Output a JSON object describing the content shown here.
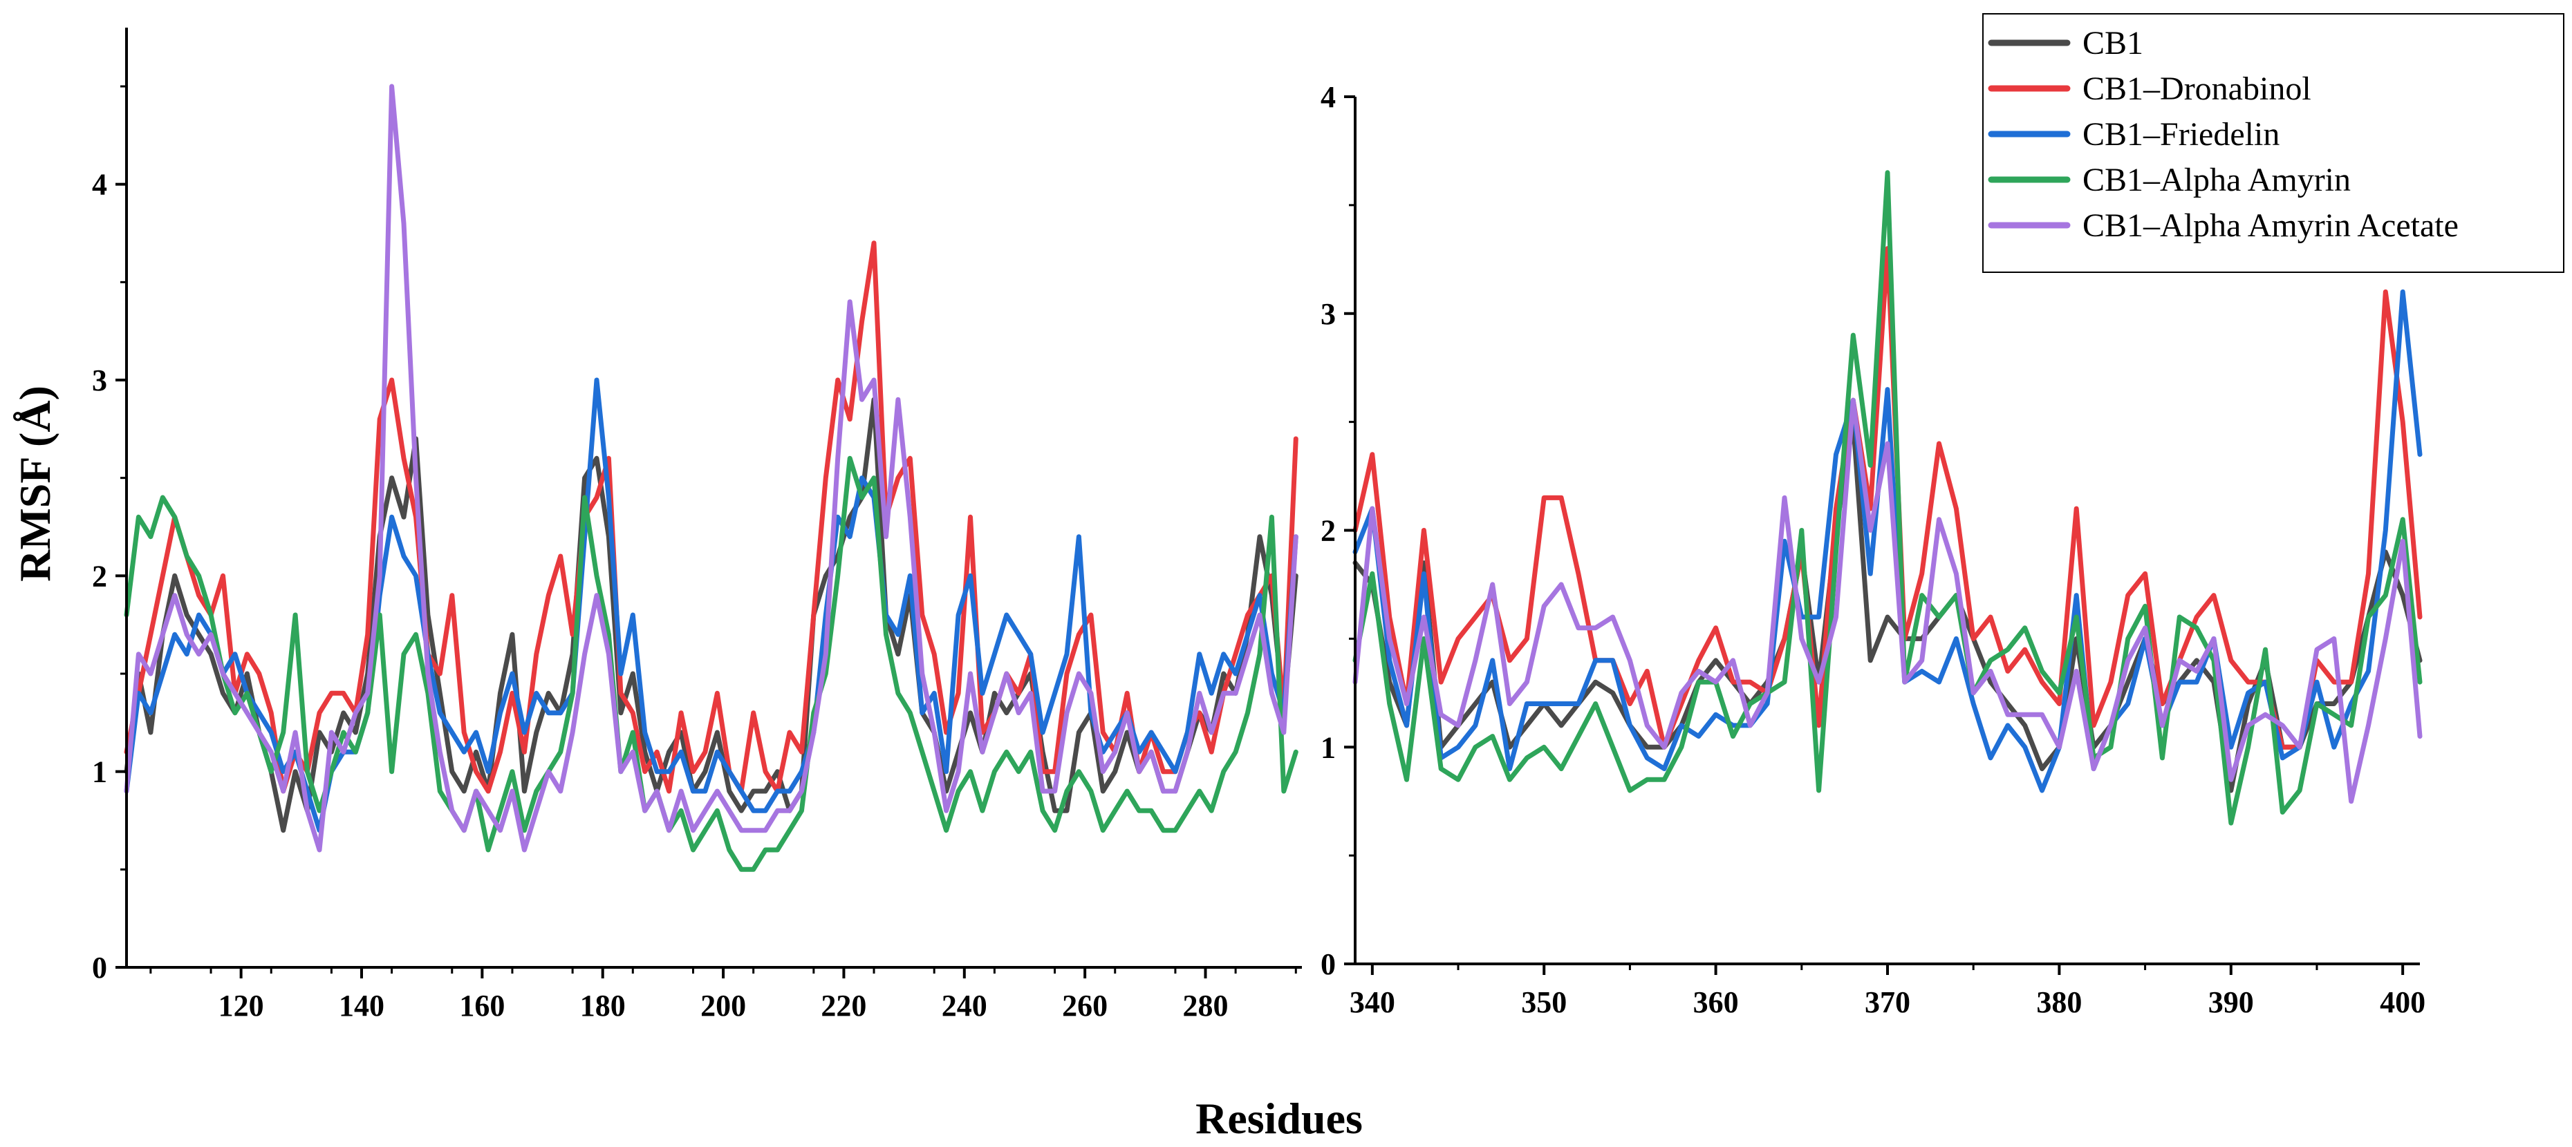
{
  "colors": {
    "CB1": "#4a4a4a",
    "CB1-Dronabinol": "#e8393d",
    "CB1-Friedelin": "#1f6fd6",
    "CB1-Alpha Amyrin": "#2ea55a",
    "CB1-Alpha Amyrin Acetate": "#a675e0"
  },
  "chart_data": [
    {
      "type": "line",
      "panel": "left",
      "ylabel": "RMSF (Å)",
      "xlabel": "Residues",
      "xlim": [
        101,
        296
      ],
      "ylim": [
        0,
        4.8
      ],
      "x_ticks": [
        "120",
        "140",
        "160",
        "180",
        "200",
        "220",
        "240",
        "260",
        "280"
      ],
      "y_ticks": [
        "0",
        "1",
        "2",
        "3",
        "4"
      ],
      "grid": false,
      "x": [
        101,
        103,
        105,
        107,
        109,
        111,
        113,
        115,
        117,
        119,
        121,
        123,
        125,
        127,
        129,
        131,
        133,
        135,
        137,
        139,
        141,
        143,
        145,
        147,
        149,
        151,
        153,
        155,
        157,
        159,
        161,
        163,
        165,
        167,
        169,
        171,
        173,
        175,
        177,
        179,
        181,
        183,
        185,
        187,
        189,
        191,
        193,
        195,
        197,
        199,
        201,
        203,
        205,
        207,
        209,
        211,
        213,
        215,
        217,
        219,
        221,
        223,
        225,
        227,
        229,
        231,
        233,
        235,
        237,
        239,
        241,
        243,
        245,
        247,
        249,
        251,
        253,
        255,
        257,
        259,
        261,
        263,
        265,
        267,
        269,
        271,
        273,
        275,
        277,
        279,
        281,
        283,
        285,
        287,
        289,
        291,
        293,
        295
      ],
      "series": [
        {
          "name": "CB1",
          "values": [
            1.0,
            1.5,
            1.2,
            1.7,
            2.0,
            1.8,
            1.7,
            1.6,
            1.4,
            1.3,
            1.5,
            1.2,
            1.0,
            0.7,
            1.0,
            0.8,
            1.2,
            1.1,
            1.3,
            1.2,
            1.5,
            2.2,
            2.5,
            2.3,
            2.7,
            1.8,
            1.4,
            1.0,
            0.9,
            1.1,
            0.9,
            1.4,
            1.7,
            0.9,
            1.2,
            1.4,
            1.3,
            1.6,
            2.5,
            2.6,
            2.2,
            1.3,
            1.5,
            1.1,
            0.9,
            1.1,
            1.2,
            0.9,
            1.0,
            1.2,
            0.9,
            0.8,
            0.9,
            0.9,
            1.0,
            0.8,
            0.9,
            1.8,
            2.0,
            2.1,
            2.3,
            2.4,
            2.9,
            1.8,
            1.6,
            1.9,
            1.3,
            1.2,
            0.9,
            1.1,
            1.3,
            1.1,
            1.4,
            1.3,
            1.4,
            1.5,
            1.1,
            0.8,
            0.8,
            1.2,
            1.3,
            0.9,
            1.0,
            1.2,
            1.0,
            1.1,
            0.9,
            0.9,
            1.1,
            1.3,
            1.2,
            1.5,
            1.4,
            1.7,
            2.2,
            1.9,
            1.3,
            2.0
          ]
        },
        {
          "name": "CB1-Dronabinol",
          "values": [
            1.1,
            1.4,
            1.7,
            2.0,
            2.3,
            2.1,
            1.9,
            1.8,
            2.0,
            1.4,
            1.6,
            1.5,
            1.3,
            0.9,
            1.1,
            1.0,
            1.3,
            1.4,
            1.4,
            1.3,
            1.7,
            2.8,
            3.0,
            2.6,
            2.3,
            1.6,
            1.5,
            1.9,
            1.2,
            1.0,
            0.9,
            1.1,
            1.4,
            1.1,
            1.6,
            1.9,
            2.1,
            1.7,
            2.3,
            2.4,
            2.6,
            1.4,
            1.3,
            1.0,
            1.1,
            0.9,
            1.3,
            1.0,
            1.1,
            1.4,
            1.0,
            0.9,
            1.3,
            1.0,
            0.9,
            1.2,
            1.1,
            1.8,
            2.5,
            3.0,
            2.8,
            3.3,
            3.7,
            2.3,
            2.5,
            2.6,
            1.8,
            1.6,
            1.2,
            1.4,
            2.3,
            1.2,
            1.3,
            1.5,
            1.4,
            1.6,
            1.0,
            1.0,
            1.5,
            1.7,
            1.8,
            1.2,
            1.1,
            1.4,
            1.0,
            1.2,
            1.0,
            1.0,
            1.2,
            1.3,
            1.1,
            1.4,
            1.6,
            1.8,
            1.9,
            2.0,
            1.3,
            2.7
          ]
        },
        {
          "name": "CB1-Friedelin",
          "values": [
            0.9,
            1.4,
            1.3,
            1.5,
            1.7,
            1.6,
            1.8,
            1.7,
            1.5,
            1.6,
            1.4,
            1.3,
            1.2,
            1.0,
            1.1,
            0.9,
            0.7,
            1.0,
            1.1,
            1.1,
            1.3,
            1.9,
            2.3,
            2.1,
            2.0,
            1.6,
            1.3,
            1.2,
            1.1,
            1.2,
            1.0,
            1.3,
            1.5,
            1.2,
            1.4,
            1.3,
            1.3,
            1.4,
            2.2,
            3.0,
            2.4,
            1.5,
            1.8,
            1.2,
            1.0,
            1.0,
            1.1,
            0.9,
            0.9,
            1.1,
            1.0,
            0.9,
            0.8,
            0.8,
            0.9,
            0.9,
            1.0,
            1.2,
            1.8,
            2.3,
            2.2,
            2.5,
            2.4,
            1.8,
            1.7,
            2.0,
            1.3,
            1.4,
            1.0,
            1.8,
            2.0,
            1.4,
            1.6,
            1.8,
            1.7,
            1.6,
            1.2,
            1.4,
            1.6,
            2.2,
            1.3,
            1.1,
            1.2,
            1.3,
            1.1,
            1.2,
            1.1,
            1.0,
            1.2,
            1.6,
            1.4,
            1.6,
            1.5,
            1.7,
            1.9,
            1.5,
            1.3,
            2.2
          ]
        },
        {
          "name": "CB1-Alpha Amyrin",
          "values": [
            1.8,
            2.3,
            2.2,
            2.4,
            2.3,
            2.1,
            2.0,
            1.8,
            1.5,
            1.3,
            1.4,
            1.2,
            1.0,
            1.2,
            1.8,
            1.0,
            0.8,
            1.0,
            1.2,
            1.1,
            1.3,
            1.8,
            1.0,
            1.6,
            1.7,
            1.4,
            0.9,
            0.8,
            0.7,
            0.9,
            0.6,
            0.8,
            1.0,
            0.7,
            0.9,
            1.0,
            1.1,
            1.4,
            2.4,
            2.0,
            1.7,
            1.0,
            1.2,
            0.8,
            0.9,
            0.7,
            0.8,
            0.6,
            0.7,
            0.8,
            0.6,
            0.5,
            0.5,
            0.6,
            0.6,
            0.7,
            0.8,
            1.3,
            1.5,
            2.0,
            2.6,
            2.4,
            2.5,
            1.7,
            1.4,
            1.3,
            1.1,
            0.9,
            0.7,
            0.9,
            1.0,
            0.8,
            1.0,
            1.1,
            1.0,
            1.1,
            0.8,
            0.7,
            0.9,
            1.0,
            0.9,
            0.7,
            0.8,
            0.9,
            0.8,
            0.8,
            0.7,
            0.7,
            0.8,
            0.9,
            0.8,
            1.0,
            1.1,
            1.3,
            1.6,
            2.3,
            0.9,
            1.1
          ]
        },
        {
          "name": "CB1-Alpha Amyrin Acetate",
          "values": [
            0.9,
            1.6,
            1.5,
            1.7,
            1.9,
            1.7,
            1.6,
            1.7,
            1.5,
            1.4,
            1.3,
            1.2,
            1.1,
            0.9,
            1.2,
            0.8,
            0.6,
            1.2,
            1.1,
            1.3,
            1.4,
            2.0,
            4.5,
            3.8,
            2.5,
            1.5,
            1.1,
            0.8,
            0.7,
            0.9,
            0.8,
            0.7,
            0.9,
            0.6,
            0.8,
            1.0,
            0.9,
            1.2,
            1.6,
            1.9,
            1.6,
            1.0,
            1.1,
            0.8,
            0.9,
            0.7,
            0.9,
            0.7,
            0.8,
            0.9,
            0.8,
            0.7,
            0.7,
            0.7,
            0.8,
            0.8,
            0.9,
            1.2,
            1.6,
            2.6,
            3.4,
            2.9,
            3.0,
            2.2,
            2.9,
            2.3,
            1.5,
            1.2,
            0.8,
            1.0,
            1.5,
            1.1,
            1.3,
            1.5,
            1.3,
            1.4,
            0.9,
            0.9,
            1.3,
            1.5,
            1.4,
            1.0,
            1.1,
            1.3,
            1.0,
            1.1,
            0.9,
            0.9,
            1.1,
            1.4,
            1.2,
            1.4,
            1.4,
            1.6,
            1.8,
            1.4,
            1.2,
            2.2
          ]
        }
      ]
    },
    {
      "type": "line",
      "panel": "right",
      "xlim": [
        339,
        401
      ],
      "ylim": [
        0,
        4
      ],
      "x_ticks": [
        "340",
        "350",
        "360",
        "370",
        "380",
        "390",
        "400"
      ],
      "y_ticks": [
        "0",
        "1",
        "2",
        "3",
        "4"
      ],
      "grid": false,
      "legend_position": "top-right",
      "x": [
        339,
        340,
        341,
        342,
        343,
        344,
        345,
        346,
        347,
        348,
        349,
        350,
        351,
        352,
        353,
        354,
        355,
        356,
        357,
        358,
        359,
        360,
        361,
        362,
        363,
        364,
        365,
        366,
        367,
        368,
        369,
        370,
        371,
        372,
        373,
        374,
        375,
        376,
        377,
        378,
        379,
        380,
        381,
        382,
        383,
        384,
        385,
        386,
        387,
        388,
        389,
        390,
        391,
        392,
        393,
        394,
        395,
        396,
        397,
        398,
        399,
        400,
        401
      ],
      "series": [
        {
          "name": "CB1",
          "values": [
            1.85,
            1.75,
            1.3,
            1.1,
            1.85,
            1.0,
            1.1,
            1.2,
            1.3,
            1.0,
            1.1,
            1.2,
            1.1,
            1.2,
            1.3,
            1.25,
            1.1,
            1.0,
            1.0,
            1.1,
            1.3,
            1.4,
            1.3,
            1.2,
            1.3,
            1.5,
            1.9,
            1.3,
            2.0,
            2.5,
            1.4,
            1.6,
            1.5,
            1.5,
            1.6,
            1.7,
            1.5,
            1.3,
            1.2,
            1.1,
            0.9,
            1.0,
            1.5,
            1.0,
            1.1,
            1.3,
            1.5,
            1.2,
            1.3,
            1.4,
            1.3,
            0.8,
            1.2,
            1.4,
            1.0,
            1.0,
            1.2,
            1.2,
            1.3,
            1.6,
            1.9,
            1.7,
            1.4
          ]
        },
        {
          "name": "CB1-Dronabinol",
          "values": [
            2.0,
            2.35,
            1.6,
            1.2,
            2.0,
            1.3,
            1.5,
            1.6,
            1.7,
            1.4,
            1.5,
            2.15,
            2.15,
            1.8,
            1.4,
            1.4,
            1.2,
            1.35,
            1.0,
            1.2,
            1.4,
            1.55,
            1.3,
            1.3,
            1.25,
            1.5,
            1.9,
            1.1,
            2.1,
            2.6,
            2.1,
            3.3,
            1.5,
            1.8,
            2.4,
            2.1,
            1.5,
            1.6,
            1.35,
            1.45,
            1.3,
            1.2,
            2.1,
            1.1,
            1.3,
            1.7,
            1.8,
            1.2,
            1.4,
            1.6,
            1.7,
            1.4,
            1.3,
            1.3,
            1.0,
            1.0,
            1.4,
            1.3,
            1.3,
            1.8,
            3.1,
            2.5,
            1.6
          ]
        },
        {
          "name": "CB1-Friedelin",
          "values": [
            1.9,
            2.1,
            1.4,
            1.1,
            1.8,
            0.95,
            1.0,
            1.1,
            1.4,
            0.9,
            1.2,
            1.2,
            1.2,
            1.2,
            1.4,
            1.4,
            1.1,
            0.95,
            0.9,
            1.1,
            1.05,
            1.15,
            1.1,
            1.1,
            1.2,
            1.95,
            1.6,
            1.6,
            2.35,
            2.6,
            1.8,
            2.65,
            1.3,
            1.35,
            1.3,
            1.5,
            1.2,
            0.95,
            1.1,
            1.0,
            0.8,
            1.0,
            1.7,
            0.9,
            1.1,
            1.2,
            1.5,
            1.1,
            1.3,
            1.3,
            1.5,
            1.0,
            1.25,
            1.3,
            0.95,
            1.0,
            1.3,
            1.0,
            1.2,
            1.35,
            2.0,
            3.1,
            2.35
          ]
        },
        {
          "name": "CB1-Alpha Amyrin",
          "values": [
            1.4,
            1.8,
            1.2,
            0.85,
            1.5,
            0.9,
            0.85,
            1.0,
            1.05,
            0.85,
            0.95,
            1.0,
            0.9,
            1.05,
            1.2,
            1.0,
            0.8,
            0.85,
            0.85,
            1.0,
            1.3,
            1.3,
            1.05,
            1.2,
            1.25,
            1.3,
            2.0,
            0.8,
            1.9,
            2.9,
            2.3,
            3.65,
            1.3,
            1.7,
            1.6,
            1.7,
            1.25,
            1.4,
            1.45,
            1.55,
            1.35,
            1.25,
            1.6,
            0.95,
            1.0,
            1.5,
            1.65,
            0.95,
            1.6,
            1.55,
            1.4,
            0.65,
            1.0,
            1.45,
            0.7,
            0.8,
            1.2,
            1.15,
            1.1,
            1.6,
            1.7,
            2.05,
            1.3
          ]
        },
        {
          "name": "CB1-Alpha Amyrin Acetate",
          "values": [
            1.3,
            2.1,
            1.5,
            1.2,
            1.6,
            1.15,
            1.1,
            1.4,
            1.75,
            1.2,
            1.3,
            1.65,
            1.75,
            1.55,
            1.55,
            1.6,
            1.4,
            1.1,
            1.0,
            1.25,
            1.35,
            1.3,
            1.4,
            1.1,
            1.25,
            2.15,
            1.5,
            1.3,
            1.6,
            2.6,
            2.0,
            2.4,
            1.3,
            1.4,
            2.05,
            1.8,
            1.25,
            1.35,
            1.15,
            1.15,
            1.15,
            1.0,
            1.35,
            0.9,
            1.1,
            1.4,
            1.55,
            1.1,
            1.4,
            1.35,
            1.5,
            0.85,
            1.1,
            1.15,
            1.1,
            1.0,
            1.45,
            1.5,
            0.75,
            1.1,
            1.5,
            1.95,
            1.05
          ]
        }
      ]
    }
  ],
  "legend": [
    {
      "label": "CB1",
      "color": "#4a4a4a"
    },
    {
      "label": "CB1–Dronabinol",
      "color": "#e8393d"
    },
    {
      "label": "CB1–Friedelin",
      "color": "#1f6fd6"
    },
    {
      "label": "CB1–Alpha Amyrin",
      "color": "#2ea55a"
    },
    {
      "label": "CB1–Alpha Amyrin Acetate",
      "color": "#a675e0"
    }
  ]
}
